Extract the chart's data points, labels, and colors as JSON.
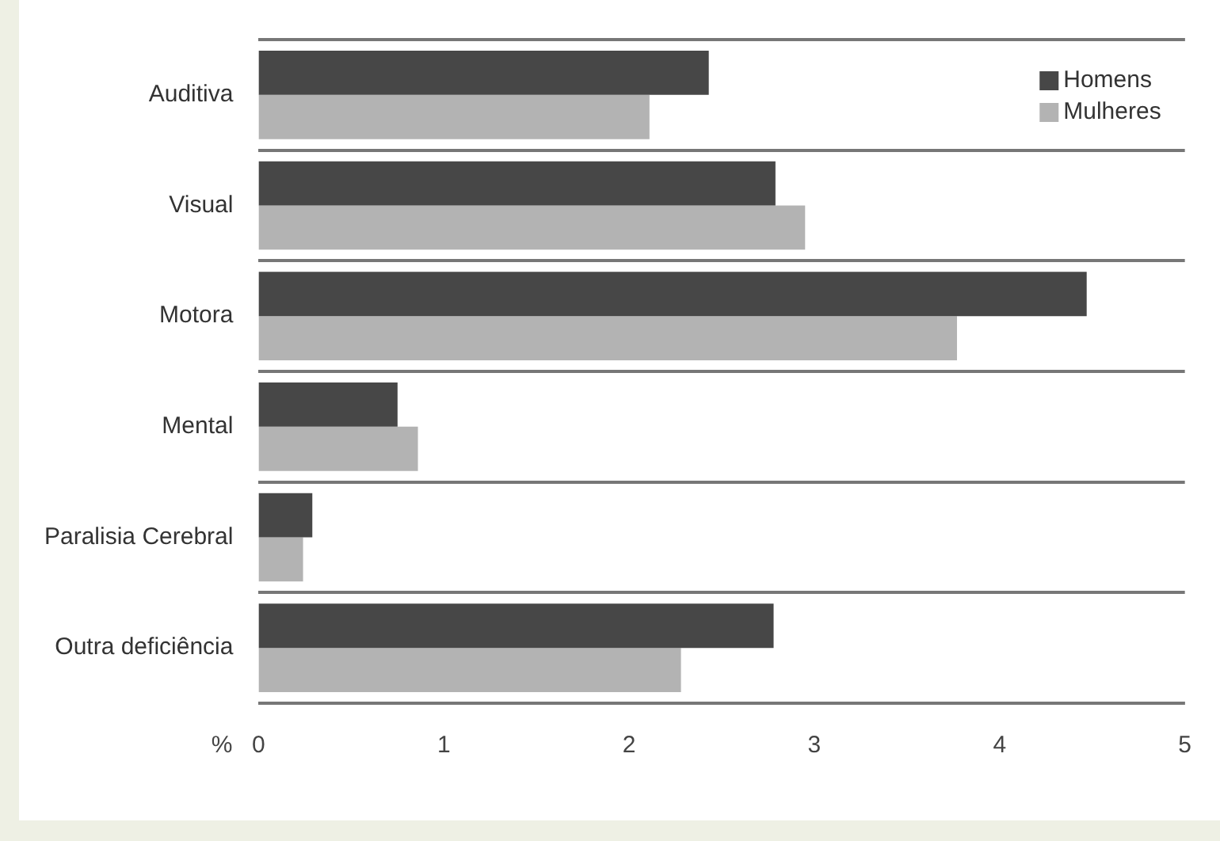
{
  "chart_data": {
    "type": "bar",
    "orientation": "horizontal",
    "xlabel": "%",
    "categories": [
      "Auditiva",
      "Visual",
      "Motora",
      "Mental",
      "Paralisia Cerebral",
      "Outra deficiência"
    ],
    "series": [
      {
        "name": "Homens",
        "color": "#474747",
        "values": [
          2.43,
          2.79,
          4.47,
          0.75,
          0.29,
          2.78
        ]
      },
      {
        "name": "Mulheres",
        "color": "#b3b3b3",
        "values": [
          2.11,
          2.95,
          3.77,
          0.86,
          0.24,
          2.28
        ]
      }
    ],
    "xlim": [
      0,
      5
    ],
    "xticks": [
      0,
      1,
      2,
      3,
      4,
      5
    ],
    "grid": "y",
    "legend": "top right"
  }
}
